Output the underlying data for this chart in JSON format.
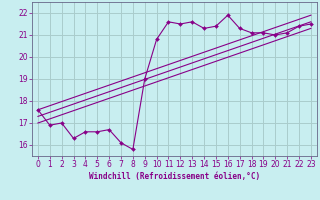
{
  "xlabel": "Windchill (Refroidissement éolien,°C)",
  "bg_color": "#c8eef0",
  "grid_color": "#aacccc",
  "line_color": "#880088",
  "spine_color": "#666688",
  "xlim": [
    -0.5,
    23.5
  ],
  "ylim": [
    15.5,
    22.5
  ],
  "yticks": [
    16,
    17,
    18,
    19,
    20,
    21,
    22
  ],
  "xticks": [
    0,
    1,
    2,
    3,
    4,
    5,
    6,
    7,
    8,
    9,
    10,
    11,
    12,
    13,
    14,
    15,
    16,
    17,
    18,
    19,
    20,
    21,
    22,
    23
  ],
  "line1_x": [
    0,
    1,
    2,
    3,
    4,
    5,
    6,
    7,
    8,
    9,
    10,
    11,
    12,
    13,
    14,
    15,
    16,
    17,
    18,
    19,
    20,
    21,
    22,
    23
  ],
  "line1_y": [
    17.6,
    16.9,
    17.0,
    16.3,
    16.6,
    16.6,
    16.7,
    16.1,
    15.8,
    19.0,
    20.8,
    21.6,
    21.5,
    21.6,
    21.3,
    21.4,
    21.9,
    21.3,
    21.1,
    21.1,
    21.0,
    21.1,
    21.4,
    21.5
  ],
  "line2_x": [
    0,
    23
  ],
  "line2_y": [
    17.0,
    21.3
  ],
  "line3_x": [
    0,
    23
  ],
  "line3_y": [
    17.3,
    21.6
  ],
  "line4_x": [
    0,
    23
  ],
  "line4_y": [
    17.6,
    21.9
  ]
}
